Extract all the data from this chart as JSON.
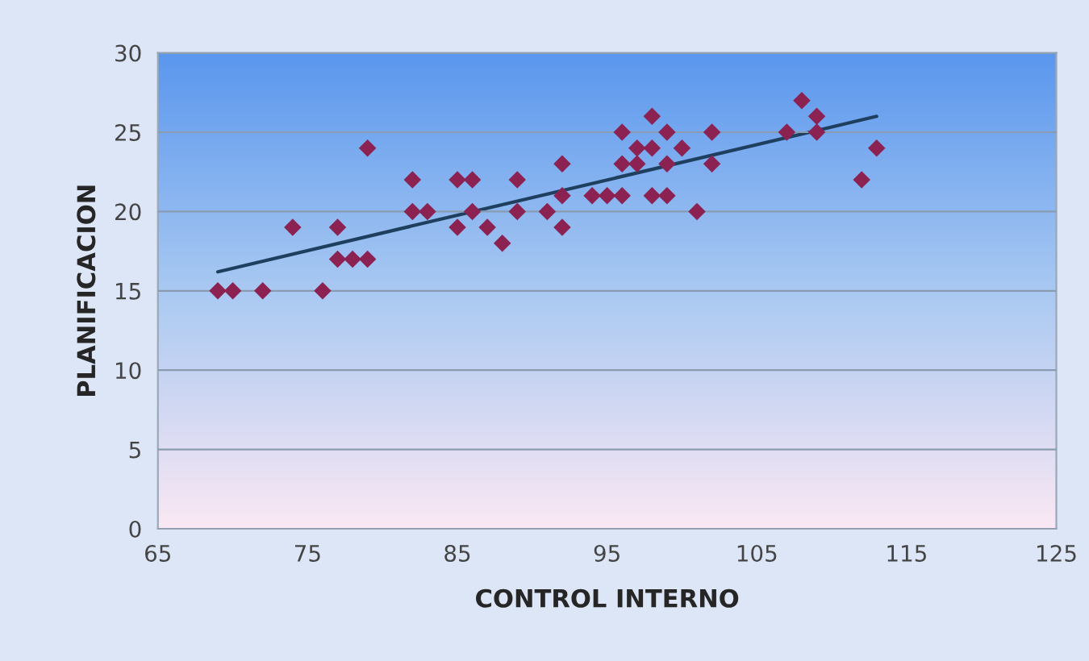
{
  "chart_data": {
    "type": "scatter",
    "xlabel": "CONTROL INTERNO",
    "ylabel": "PLANIFICACION",
    "xlim": [
      65,
      125
    ],
    "xticks": [
      65,
      75,
      85,
      95,
      105,
      115,
      125
    ],
    "ylim": [
      0,
      30
    ],
    "yticks": [
      0,
      5,
      10,
      15,
      20,
      25,
      30
    ],
    "grid": "y",
    "series": [
      {
        "marker": "diamond",
        "color": "#8b2252",
        "x": [
          69,
          70,
          72,
          74,
          76,
          77,
          77,
          78,
          79,
          79,
          82,
          82,
          83,
          85,
          85,
          86,
          86,
          87,
          88,
          89,
          89,
          91,
          92,
          92,
          92,
          94,
          95,
          96,
          96,
          96,
          97,
          97,
          98,
          98,
          98,
          99,
          99,
          99,
          100,
          101,
          102,
          102,
          107,
          108,
          109,
          109,
          112,
          113
        ],
        "values": [
          15,
          15,
          15,
          19,
          15,
          19,
          17,
          17,
          17,
          24,
          22,
          20,
          20,
          22,
          19,
          22,
          20,
          19,
          18,
          22,
          20,
          20,
          23,
          21,
          19,
          21,
          21,
          21,
          25,
          23,
          24,
          23,
          26,
          24,
          21,
          25,
          23,
          21,
          24,
          20,
          25,
          23,
          25,
          27,
          26,
          25,
          22,
          24
        ]
      },
      {
        "type": "line",
        "color": "#1f3f5f",
        "x": [
          69,
          113
        ],
        "values": [
          16.2,
          26
        ]
      }
    ]
  }
}
